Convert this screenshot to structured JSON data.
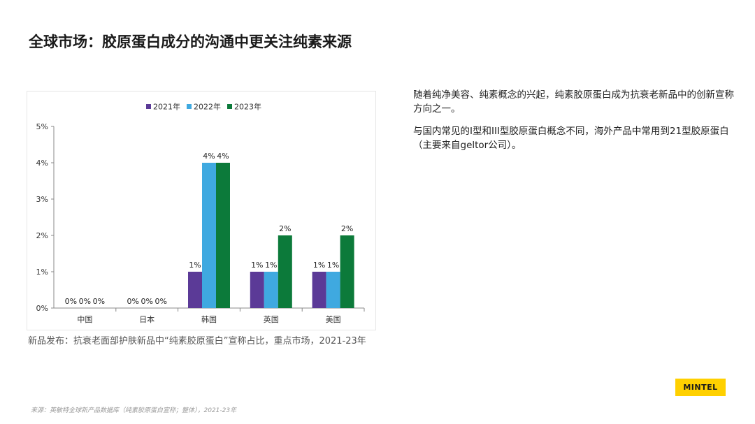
{
  "slide": {
    "title": "全球市场：胶原蛋白成分的沟通中更关注纯素来源",
    "caption": "新品发布：抗衰老面部护肤新品中“纯素胶原蛋白”宣称占比，重点市场，2021-23年",
    "source": "来源：英敏特全球新产品数据库（纯素胶原蛋白宣称；整体），2021-23年",
    "brand": "MINTEL",
    "paragraphs": [
      "随着纯净美容、纯素概念的兴起，纯素胶原蛋白成为抗衰老新品中的创新宣称方向之一。",
      "与国内常见的I型和III型胶原蛋白概念不同，海外产品中常用到21型胶原蛋白（主要来自geltor公司）。"
    ]
  },
  "chart_data": {
    "type": "bar",
    "categories": [
      "中国",
      "日本",
      "韩国",
      "英国",
      "美国"
    ],
    "series": [
      {
        "name": "2021年",
        "color": "#5b3a97",
        "values": [
          0,
          0,
          1,
          1,
          1
        ],
        "labels": [
          "0%",
          "0%",
          "1%",
          "1%",
          "1%"
        ]
      },
      {
        "name": "2022年",
        "color": "#3fa9e0",
        "values": [
          0,
          0,
          4,
          1,
          1
        ],
        "labels": [
          "0%",
          "0%",
          "4%",
          "1%",
          "1%"
        ]
      },
      {
        "name": "2023年",
        "color": "#0c7a3a",
        "values": [
          0,
          0,
          4,
          2,
          2
        ],
        "labels": [
          "0%",
          "0%",
          "4%",
          "2%",
          "2%"
        ]
      }
    ],
    "ylim": [
      0,
      5
    ],
    "yticks": [
      0,
      1,
      2,
      3,
      4,
      5
    ],
    "yticklabels": [
      "0%",
      "1%",
      "2%",
      "3%",
      "4%",
      "5%"
    ],
    "legend_position": "top-center",
    "grid": false
  }
}
